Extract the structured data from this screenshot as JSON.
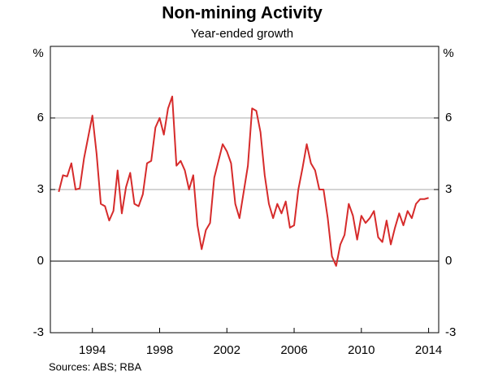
{
  "chart_data": {
    "type": "line",
    "title": "Non-mining Activity",
    "subtitle": "Year-ended growth",
    "y_label": "%",
    "source": "Sources:   ABS; RBA",
    "x": [
      1992,
      1992.25,
      1992.5,
      1992.75,
      1993,
      1993.25,
      1993.5,
      1993.75,
      1994,
      1994.25,
      1994.5,
      1994.75,
      1995,
      1995.25,
      1995.5,
      1995.75,
      1996,
      1996.25,
      1996.5,
      1996.75,
      1997,
      1997.25,
      1997.5,
      1997.75,
      1998,
      1998.25,
      1998.5,
      1998.75,
      1999,
      1999.25,
      1999.5,
      1999.75,
      2000,
      2000.25,
      2000.5,
      2000.75,
      2001,
      2001.25,
      2001.5,
      2001.75,
      2002,
      2002.25,
      2002.5,
      2002.75,
      2003,
      2003.25,
      2003.5,
      2003.75,
      2004,
      2004.25,
      2004.5,
      2004.75,
      2005,
      2005.25,
      2005.5,
      2005.75,
      2006,
      2006.25,
      2006.5,
      2006.75,
      2007,
      2007.25,
      2007.5,
      2007.75,
      2008,
      2008.25,
      2008.5,
      2008.75,
      2009,
      2009.25,
      2009.5,
      2009.75,
      2010,
      2010.25,
      2010.5,
      2010.75,
      2011,
      2011.25,
      2011.5,
      2011.75,
      2012,
      2012.25,
      2012.5,
      2012.75,
      2013,
      2013.25,
      2013.5,
      2013.75,
      2014
    ],
    "series": [
      {
        "name": "Non-mining activity",
        "color": "#d62b2b",
        "values": [
          2.9,
          3.6,
          3.55,
          4.1,
          3.0,
          3.05,
          4.3,
          5.2,
          6.1,
          4.5,
          2.4,
          2.3,
          1.7,
          2.1,
          3.8,
          2.0,
          3.1,
          3.7,
          2.4,
          2.3,
          2.8,
          4.1,
          4.2,
          5.6,
          6.0,
          5.3,
          6.4,
          6.9,
          4.0,
          4.2,
          3.8,
          3.0,
          3.6,
          1.5,
          0.5,
          1.3,
          1.6,
          3.5,
          4.2,
          4.9,
          4.6,
          4.1,
          2.4,
          1.8,
          2.9,
          4.0,
          6.4,
          6.3,
          5.4,
          3.6,
          2.4,
          1.8,
          2.4,
          2.0,
          2.5,
          1.4,
          1.5,
          3.0,
          3.9,
          4.9,
          4.1,
          3.8,
          3.0,
          3.0,
          1.8,
          0.2,
          -0.2,
          0.7,
          1.1,
          2.4,
          1.9,
          0.9,
          1.9,
          1.6,
          1.8,
          2.1,
          1.0,
          0.8,
          1.7,
          0.7,
          1.4,
          2.0,
          1.5,
          2.1,
          1.8,
          2.4,
          2.6,
          2.6,
          2.65
        ]
      }
    ],
    "xlim": [
      1991.5,
      2014.6
    ],
    "xticks": [
      1994,
      1998,
      2002,
      2006,
      2010,
      2014
    ],
    "ylim": [
      -3,
      9
    ],
    "yticks": [
      -3,
      0,
      3,
      6
    ],
    "grid": true
  }
}
